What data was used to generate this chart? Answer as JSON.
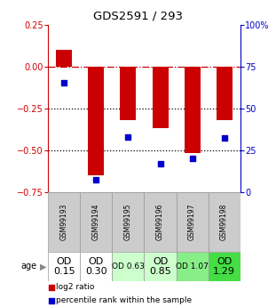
{
  "title": "GDS2591 / 293",
  "samples": [
    "GSM99193",
    "GSM99194",
    "GSM99195",
    "GSM99196",
    "GSM99197",
    "GSM99198"
  ],
  "log2_ratio": [
    0.1,
    -0.65,
    -0.32,
    -0.37,
    -0.52,
    -0.32
  ],
  "percentile_rank": [
    65,
    7,
    33,
    17,
    20,
    32
  ],
  "ylim_left": [
    -0.75,
    0.25
  ],
  "ylim_right": [
    0,
    100
  ],
  "yticks_left": [
    0.25,
    0,
    -0.25,
    -0.5,
    -0.75
  ],
  "yticks_right": [
    100,
    75,
    50,
    25,
    0
  ],
  "bar_color": "#cc0000",
  "scatter_color": "#0000cc",
  "age_labels": [
    "OD\n0.15",
    "OD\n0.30",
    "OD 0.63",
    "OD\n0.85",
    "OD 1.07",
    "OD\n1.29"
  ],
  "age_bg_colors": [
    "#ffffff",
    "#ffffff",
    "#ccffcc",
    "#ccffcc",
    "#88ee88",
    "#44dd44"
  ],
  "age_font_sizes": [
    8,
    8,
    6.5,
    8,
    6.5,
    8
  ],
  "sample_bg_color": "#cccccc",
  "legend_log2_color": "#cc0000",
  "legend_pct_color": "#0000cc"
}
